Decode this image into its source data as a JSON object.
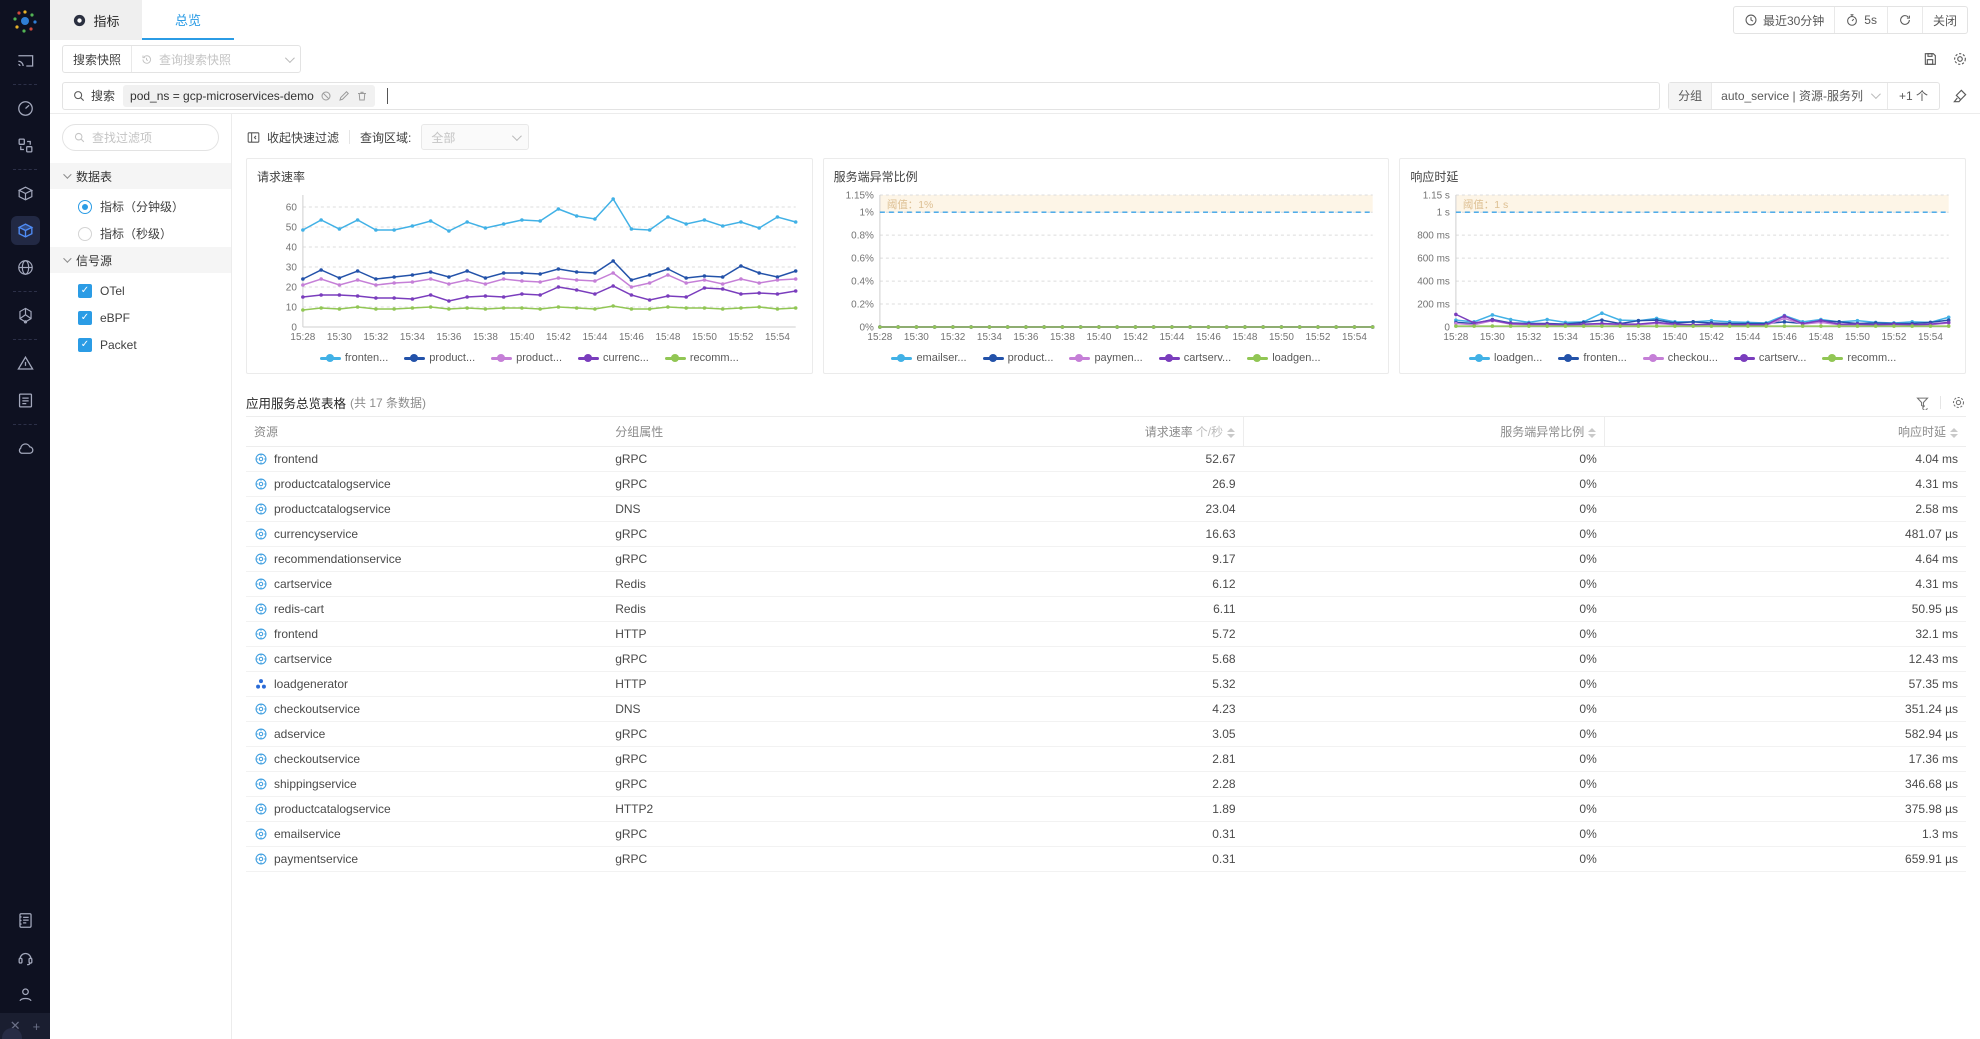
{
  "topbar": {
    "tab_metrics": "指标",
    "tab_overview": "总览",
    "time_range": "最近30分钟",
    "refresh_interval": "5s",
    "close_label": "关闭"
  },
  "snapshot_row": {
    "button_label": "搜索快照",
    "select_placeholder": "查询搜索快照"
  },
  "search_row": {
    "label": "搜索",
    "query_tag": "pod_ns = gcp-microservices-demo",
    "group_label": "分组",
    "group_value": "auto_service | 资源-服务列",
    "group_more": "+1 个"
  },
  "filter_panel": {
    "search_placeholder": "查找过滤项",
    "section_tables": "数据表",
    "radio_minute": "指标（分钟级）",
    "radio_second": "指标（秒级）",
    "section_sources": "信号源",
    "sources": [
      "OTel",
      "eBPF",
      "Packet"
    ]
  },
  "toolbar": {
    "collapse_label": "收起快速过滤",
    "region_label": "查询区域:",
    "region_value": "全部"
  },
  "chart_data": [
    {
      "type": "line",
      "title": "请求速率",
      "x_labels": [
        "15:28",
        "15:30",
        "15:32",
        "15:34",
        "15:36",
        "15:38",
        "15:40",
        "15:42",
        "15:44",
        "15:46",
        "15:48",
        "15:50",
        "15:52",
        "15:54"
      ],
      "ylim": [
        0,
        66
      ],
      "yticks": [
        {
          "v": 0,
          "label": "0"
        },
        {
          "v": 10,
          "label": "10"
        },
        {
          "v": 20,
          "label": "20"
        },
        {
          "v": 30,
          "label": "30"
        },
        {
          "v": 40,
          "label": "40"
        },
        {
          "v": 50,
          "label": "50"
        },
        {
          "v": 60,
          "label": "60"
        }
      ],
      "threshold": null,
      "series": [
        {
          "name": "fronten...",
          "color": "#41b1e6",
          "values": [
            48.5,
            53.5,
            49,
            53.5,
            48.5,
            48.5,
            50.5,
            53,
            48,
            52.5,
            49.5,
            51.5,
            53.5,
            53,
            59,
            55.5,
            54,
            64,
            49,
            48.5,
            55,
            51.5,
            53.5,
            50.5,
            52.5,
            49.5,
            55,
            52.5
          ]
        },
        {
          "name": "product...",
          "color": "#2352a9",
          "values": [
            24,
            28.5,
            24.5,
            28,
            24,
            25,
            26,
            27.5,
            25,
            28,
            24.5,
            27,
            27,
            26.5,
            29,
            27.5,
            27,
            33,
            23.5,
            26,
            29,
            24.5,
            25.5,
            25,
            30.5,
            27,
            25,
            28
          ]
        },
        {
          "name": "product...",
          "color": "#c57fd7",
          "values": [
            21,
            24,
            21,
            23.5,
            21,
            22,
            22.5,
            24,
            21.5,
            23.5,
            21.5,
            24,
            23,
            22.5,
            24.5,
            23.5,
            23,
            27,
            20,
            22,
            26,
            22,
            23.5,
            21.5,
            24,
            22,
            23.5,
            24
          ]
        },
        {
          "name": "currenc...",
          "color": "#7a3dbd",
          "values": [
            15,
            16,
            16,
            15.5,
            14.5,
            14.5,
            14,
            16,
            13,
            15,
            15.5,
            15,
            16.5,
            16,
            20,
            18.5,
            16.5,
            20.5,
            16,
            13.5,
            15.5,
            15,
            19.5,
            19,
            16.5,
            17,
            16.5,
            18
          ]
        },
        {
          "name": "recomm...",
          "color": "#91c654",
          "values": [
            8.5,
            9.5,
            9,
            10,
            9,
            9,
            9.5,
            10,
            9,
            9.5,
            9,
            9.5,
            9.5,
            9,
            10,
            9.5,
            9,
            10.5,
            9,
            9,
            10,
            9.5,
            9.5,
            9,
            9.5,
            10,
            9,
            9.5
          ]
        }
      ]
    },
    {
      "type": "line",
      "title": "服务端异常比例",
      "x_labels": [
        "15:28",
        "15:30",
        "15:32",
        "15:34",
        "15:36",
        "15:38",
        "15:40",
        "15:42",
        "15:44",
        "15:46",
        "15:48",
        "15:50",
        "15:52",
        "15:54"
      ],
      "ylim": [
        0,
        1.15
      ],
      "yticks": [
        {
          "v": 0,
          "label": "0%"
        },
        {
          "v": 0.2,
          "label": "0.2%"
        },
        {
          "v": 0.4,
          "label": "0.4%"
        },
        {
          "v": 0.6,
          "label": "0.6%"
        },
        {
          "v": 0.8,
          "label": "0.8%"
        },
        {
          "v": 1,
          "label": "1%"
        },
        {
          "v": 1.15,
          "label": "1.15%"
        }
      ],
      "threshold": {
        "value": 1,
        "label": "阈值：1%"
      },
      "series": [
        {
          "name": "emailser...",
          "color": "#41b1e6",
          "values": [
            0,
            0,
            0,
            0,
            0,
            0,
            0,
            0,
            0,
            0,
            0,
            0,
            0,
            0,
            0,
            0,
            0,
            0,
            0,
            0,
            0,
            0,
            0,
            0,
            0,
            0,
            0,
            0
          ]
        },
        {
          "name": "product...",
          "color": "#2352a9",
          "values": [
            0,
            0,
            0,
            0,
            0,
            0,
            0,
            0,
            0,
            0,
            0,
            0,
            0,
            0,
            0,
            0,
            0,
            0,
            0,
            0,
            0,
            0,
            0,
            0,
            0,
            0,
            0,
            0
          ]
        },
        {
          "name": "paymen...",
          "color": "#c57fd7",
          "values": [
            0,
            0,
            0,
            0,
            0,
            0,
            0,
            0,
            0,
            0,
            0,
            0,
            0,
            0,
            0,
            0,
            0,
            0,
            0,
            0,
            0,
            0,
            0,
            0,
            0,
            0,
            0,
            0
          ]
        },
        {
          "name": "cartserv...",
          "color": "#7a3dbd",
          "values": [
            0,
            0,
            0,
            0,
            0,
            0,
            0,
            0,
            0,
            0,
            0,
            0,
            0,
            0,
            0,
            0,
            0,
            0,
            0,
            0,
            0,
            0,
            0,
            0,
            0,
            0,
            0,
            0
          ]
        },
        {
          "name": "loadgen...",
          "color": "#91c654",
          "values": [
            0,
            0,
            0,
            0,
            0,
            0,
            0,
            0,
            0,
            0,
            0,
            0,
            0,
            0,
            0,
            0,
            0,
            0,
            0,
            0,
            0,
            0,
            0,
            0,
            0,
            0,
            0,
            0
          ]
        }
      ]
    },
    {
      "type": "line",
      "title": "响应时延",
      "x_labels": [
        "15:28",
        "15:30",
        "15:32",
        "15:34",
        "15:36",
        "15:38",
        "15:40",
        "15:42",
        "15:44",
        "15:46",
        "15:48",
        "15:50",
        "15:52",
        "15:54"
      ],
      "ylim": [
        0,
        1150
      ],
      "yticks": [
        {
          "v": 0,
          "label": "0"
        },
        {
          "v": 200,
          "label": "200 ms"
        },
        {
          "v": 400,
          "label": "400 ms"
        },
        {
          "v": 600,
          "label": "600 ms"
        },
        {
          "v": 800,
          "label": "800 ms"
        },
        {
          "v": 1000,
          "label": "1 s"
        },
        {
          "v": 1150,
          "label": "1.15 s"
        }
      ],
      "threshold": {
        "value": 1000,
        "label": "阈值：1 s"
      },
      "series": [
        {
          "name": "loadgen...",
          "color": "#41b1e6",
          "values": [
            60,
            45,
            105,
            65,
            40,
            65,
            40,
            45,
            120,
            60,
            55,
            75,
            45,
            45,
            55,
            45,
            40,
            35,
            100,
            45,
            65,
            45,
            55,
            40,
            35,
            45,
            40,
            85
          ]
        },
        {
          "name": "fronten...",
          "color": "#2352a9",
          "values": [
            40,
            30,
            65,
            35,
            30,
            30,
            25,
            40,
            60,
            30,
            55,
            60,
            35,
            45,
            35,
            30,
            30,
            30,
            45,
            30,
            55,
            45,
            30,
            35,
            30,
            30,
            40,
            60
          ]
        },
        {
          "name": "checkou...",
          "color": "#c57fd7",
          "values": [
            30,
            20,
            55,
            25,
            20,
            20,
            15,
            20,
            25,
            20,
            20,
            30,
            20,
            15,
            20,
            15,
            15,
            15,
            75,
            25,
            40,
            20,
            20,
            15,
            20,
            15,
            20,
            35
          ]
        },
        {
          "name": "cartserv...",
          "color": "#7a3dbd",
          "values": [
            110,
            35,
            60,
            30,
            25,
            25,
            20,
            25,
            30,
            25,
            25,
            40,
            25,
            20,
            25,
            20,
            20,
            20,
            95,
            30,
            55,
            25,
            25,
            20,
            25,
            20,
            25,
            40
          ]
        },
        {
          "name": "recomm...",
          "color": "#91c654",
          "values": [
            8,
            8,
            8,
            8,
            8,
            8,
            8,
            8,
            8,
            8,
            8,
            8,
            8,
            8,
            8,
            8,
            8,
            8,
            8,
            8,
            8,
            8,
            8,
            8,
            8,
            8,
            8,
            8
          ]
        }
      ]
    }
  ],
  "table": {
    "title": "应用服务总览表格",
    "count": "(共 17 条数据)",
    "columns": {
      "resource": "资源",
      "group": "分组属性",
      "rate": "请求速率",
      "rate_unit": "个/秒",
      "error": "服务端异常比例",
      "latency": "响应时延"
    },
    "rows": [
      {
        "icon": "service",
        "name": "frontend",
        "group": "gRPC",
        "rate": "52.67",
        "error": "0%",
        "latency": "4.04 ms"
      },
      {
        "icon": "service",
        "name": "productcatalogservice",
        "group": "gRPC",
        "rate": "26.9",
        "error": "0%",
        "latency": "4.31 ms"
      },
      {
        "icon": "service",
        "name": "productcatalogservice",
        "group": "DNS",
        "rate": "23.04",
        "error": "0%",
        "latency": "2.58 ms"
      },
      {
        "icon": "service",
        "name": "currencyservice",
        "group": "gRPC",
        "rate": "16.63",
        "error": "0%",
        "latency": "481.07 µs"
      },
      {
        "icon": "service",
        "name": "recommendationservice",
        "group": "gRPC",
        "rate": "9.17",
        "error": "0%",
        "latency": "4.64 ms"
      },
      {
        "icon": "service",
        "name": "cartservice",
        "group": "Redis",
        "rate": "6.12",
        "error": "0%",
        "latency": "4.31 ms"
      },
      {
        "icon": "service",
        "name": "redis-cart",
        "group": "Redis",
        "rate": "6.11",
        "error": "0%",
        "latency": "50.95 µs"
      },
      {
        "icon": "service",
        "name": "frontend",
        "group": "HTTP",
        "rate": "5.72",
        "error": "0%",
        "latency": "32.1 ms"
      },
      {
        "icon": "service",
        "name": "cartservice",
        "group": "gRPC",
        "rate": "5.68",
        "error": "0%",
        "latency": "12.43 ms"
      },
      {
        "icon": "workload",
        "name": "loadgenerator",
        "group": "HTTP",
        "rate": "5.32",
        "error": "0%",
        "latency": "57.35 ms"
      },
      {
        "icon": "service",
        "name": "checkoutservice",
        "group": "DNS",
        "rate": "4.23",
        "error": "0%",
        "latency": "351.24 µs"
      },
      {
        "icon": "service",
        "name": "adservice",
        "group": "gRPC",
        "rate": "3.05",
        "error": "0%",
        "latency": "582.94 µs"
      },
      {
        "icon": "service",
        "name": "checkoutservice",
        "group": "gRPC",
        "rate": "2.81",
        "error": "0%",
        "latency": "17.36 ms"
      },
      {
        "icon": "service",
        "name": "shippingservice",
        "group": "gRPC",
        "rate": "2.28",
        "error": "0%",
        "latency": "346.68 µs"
      },
      {
        "icon": "service",
        "name": "productcatalogservice",
        "group": "HTTP2",
        "rate": "1.89",
        "error": "0%",
        "latency": "375.98 µs"
      },
      {
        "icon": "service",
        "name": "emailservice",
        "group": "gRPC",
        "rate": "0.31",
        "error": "0%",
        "latency": "1.3 ms"
      },
      {
        "icon": "service",
        "name": "paymentservice",
        "group": "gRPC",
        "rate": "0.31",
        "error": "0%",
        "latency": "659.91 µs"
      }
    ]
  }
}
